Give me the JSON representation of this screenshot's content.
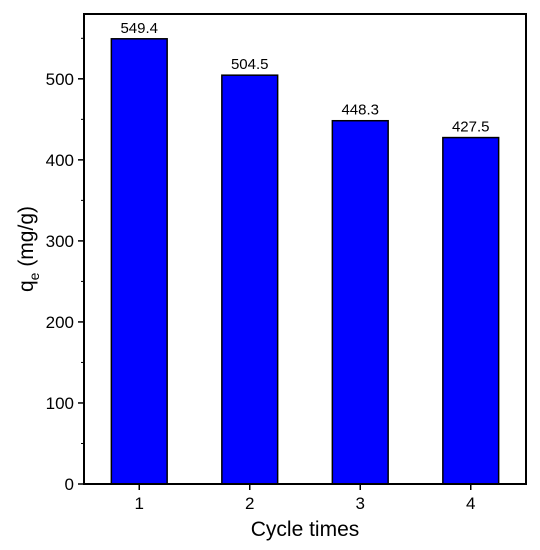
{
  "chart_data": {
    "type": "bar",
    "categories": [
      "1",
      "2",
      "3",
      "4"
    ],
    "values": [
      549.4,
      504.5,
      448.3,
      427.5
    ],
    "data_labels": [
      "549.4",
      "504.5",
      "448.3",
      "427.5"
    ],
    "xlabel": "Cycle times",
    "ylabel_main": "q",
    "ylabel_sub": "e",
    "ylabel_unit": " (mg/g)",
    "ylim": [
      0,
      580
    ],
    "yticks": [
      0,
      100,
      200,
      300,
      400,
      500
    ],
    "bar_color": "#0000ff",
    "edge_color": "#000000",
    "grid": false,
    "legend": "none"
  }
}
